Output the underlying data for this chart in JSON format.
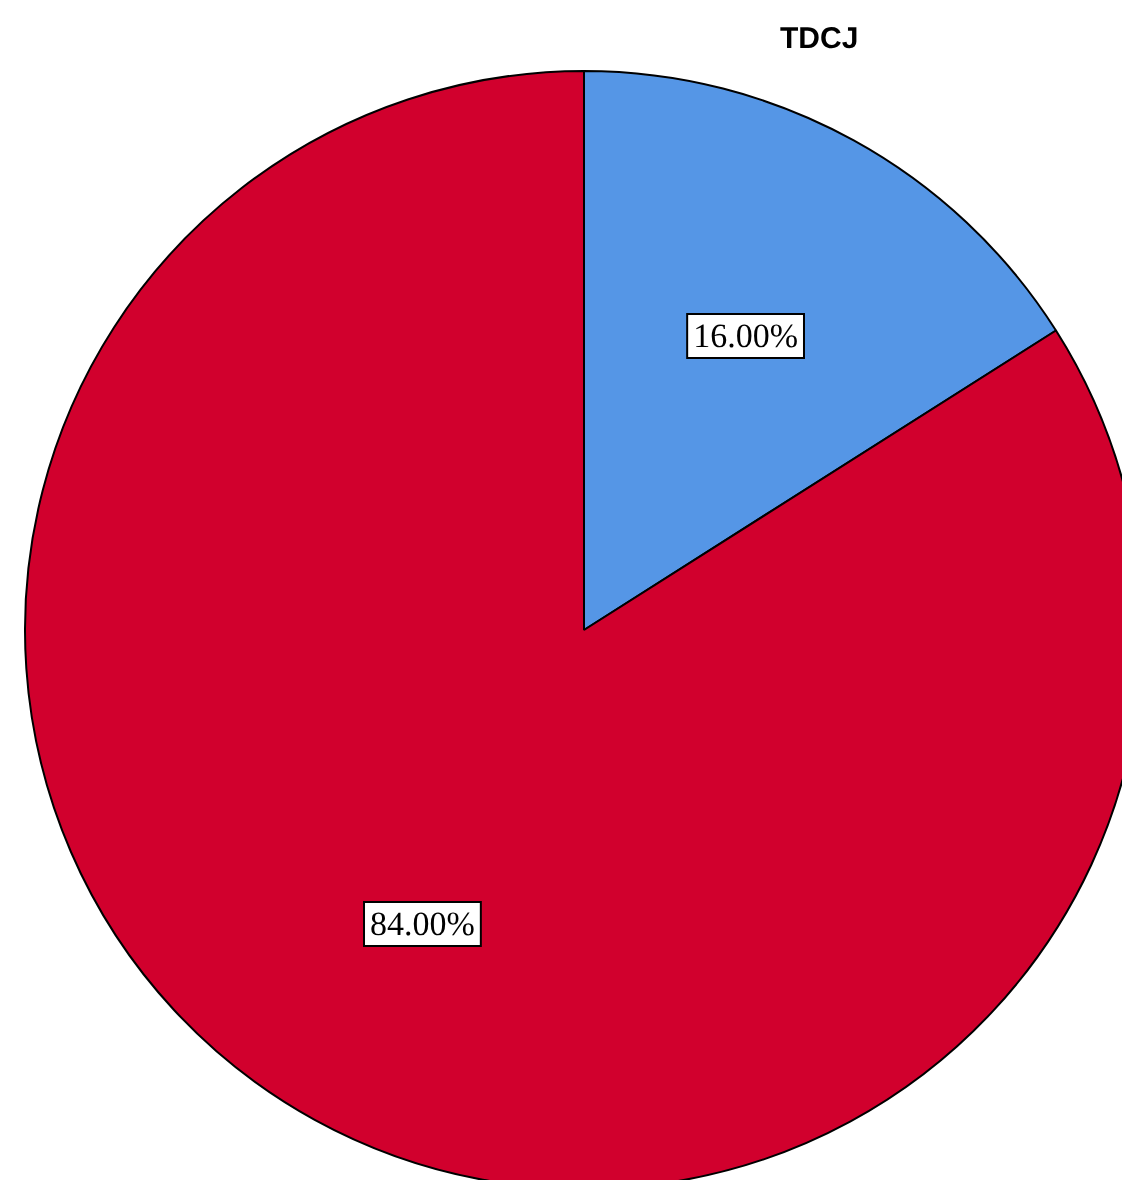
{
  "chart_data": {
    "type": "pie",
    "title": "TDCJ",
    "categories": [
      null,
      null
    ],
    "values": [
      16,
      84
    ],
    "colors": [
      "#5596e6",
      "#d1002d"
    ],
    "value_labels": [
      "16.00%",
      "84.00%"
    ],
    "legend": false
  }
}
